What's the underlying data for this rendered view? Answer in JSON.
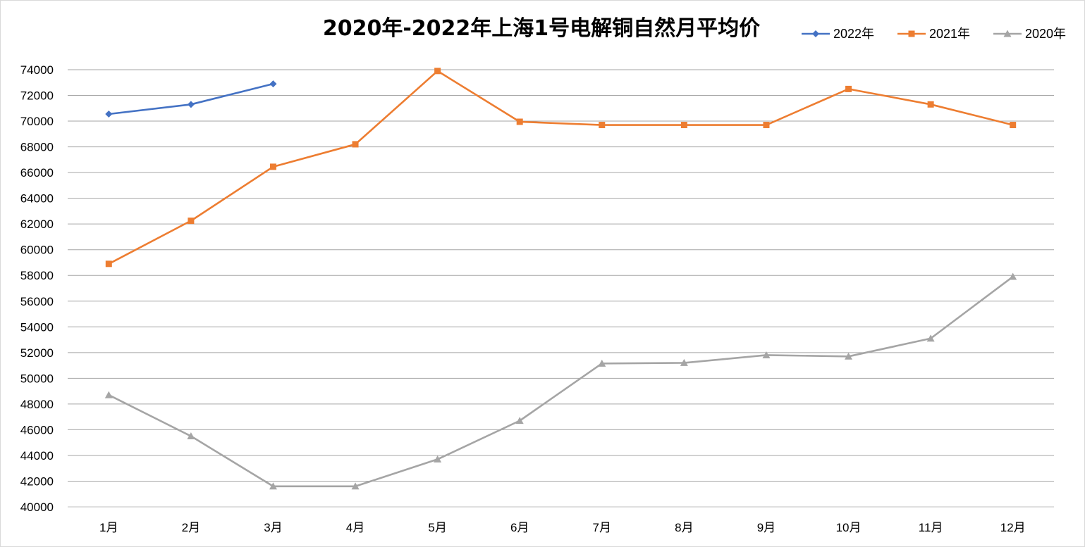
{
  "chart_data": {
    "type": "line",
    "title": "2020年-2022年上海1号电解铜自然月平均价",
    "xlabel": "",
    "ylabel": "",
    "categories": [
      "1月",
      "2月",
      "3月",
      "4月",
      "5月",
      "6月",
      "7月",
      "8月",
      "9月",
      "10月",
      "11月",
      "12月"
    ],
    "ylim": [
      40000,
      74000
    ],
    "ytick_step": 2000,
    "grid": true,
    "legend_position": "top-right",
    "series": [
      {
        "name": "2022年",
        "color": "#4472c4",
        "marker": "diamond",
        "values": [
          70550,
          71300,
          72900,
          null,
          null,
          null,
          null,
          null,
          null,
          null,
          null,
          null
        ]
      },
      {
        "name": "2021年",
        "color": "#ed7d31",
        "marker": "square",
        "values": [
          58900,
          62250,
          66450,
          68200,
          73900,
          69950,
          69700,
          69700,
          69700,
          72500,
          71300,
          69700
        ]
      },
      {
        "name": "2020年",
        "color": "#a5a5a5",
        "marker": "triangle",
        "values": [
          48700,
          45500,
          41600,
          41600,
          43700,
          46700,
          51150,
          51200,
          51800,
          51700,
          53100,
          57900
        ]
      }
    ]
  }
}
